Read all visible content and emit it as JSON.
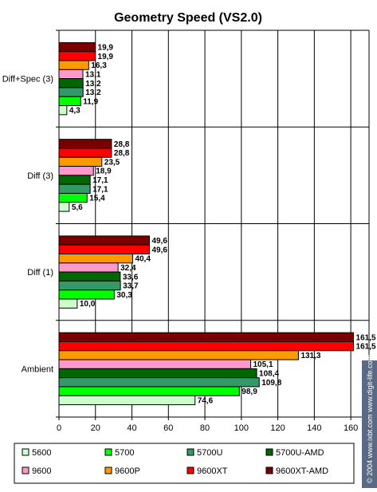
{
  "chart_data": {
    "type": "bar",
    "orientation": "horizontal",
    "title": "Geometry Speed (VS2.0)",
    "categories": [
      "Diff+Spec (3)",
      "Diff (3)",
      "Diff (1)",
      "Ambient"
    ],
    "xlim": [
      0,
      170
    ],
    "xticks": [
      "0",
      "20",
      "40",
      "60",
      "80",
      "100",
      "120",
      "140",
      "160"
    ],
    "grid": true,
    "legend_position": "bottom",
    "series": [
      {
        "name": "9600XT-AMD",
        "color": "#7a0000",
        "values": [
          19.9,
          28.8,
          49.6,
          161.5
        ],
        "labels": [
          "19,9",
          "28,8",
          "49,6",
          "161,5"
        ]
      },
      {
        "name": "9600XT",
        "color": "#ff0000",
        "values": [
          19.9,
          28.8,
          49.6,
          161.5
        ],
        "labels": [
          "19,9",
          "28,8",
          "49,6",
          "161,5"
        ]
      },
      {
        "name": "9600P",
        "color": "#ff9900",
        "values": [
          16.3,
          23.5,
          40.4,
          131.3
        ],
        "labels": [
          "16,3",
          "23,5",
          "40,4",
          "131,3"
        ]
      },
      {
        "name": "9600",
        "color": "#ff99cc",
        "values": [
          13.1,
          18.9,
          32.4,
          105.1
        ],
        "labels": [
          "13,1",
          "18,9",
          "32,4",
          "105,1"
        ]
      },
      {
        "name": "5700U-AMD",
        "color": "#006600",
        "values": [
          13.2,
          17.1,
          33.6,
          108.4
        ],
        "labels": [
          "13,2",
          "17,1",
          "33,6",
          "108,4"
        ]
      },
      {
        "name": "5700U",
        "color": "#339966",
        "values": [
          13.2,
          17.1,
          33.7,
          109.8
        ],
        "labels": [
          "13,2",
          "17,1",
          "33,7",
          "109,8"
        ]
      },
      {
        "name": "5700",
        "color": "#00ff00",
        "values": [
          11.9,
          15.4,
          30.3,
          98.9
        ],
        "labels": [
          "11,9",
          "15,4",
          "30,3",
          "98,9"
        ]
      },
      {
        "name": "5600",
        "color": "#ccffcc",
        "values": [
          4.3,
          5.6,
          10.0,
          74.6
        ],
        "labels": [
          "4,3",
          "5,6",
          "10,0",
          "74,6"
        ]
      }
    ],
    "legend_order": [
      "5600",
      "5700",
      "5700U",
      "5700U-AMD",
      "9600",
      "9600P",
      "9600XT",
      "9600XT-AMD"
    ],
    "watermark": "© 2004 www.ixbt.com   www.digit-life.com"
  }
}
